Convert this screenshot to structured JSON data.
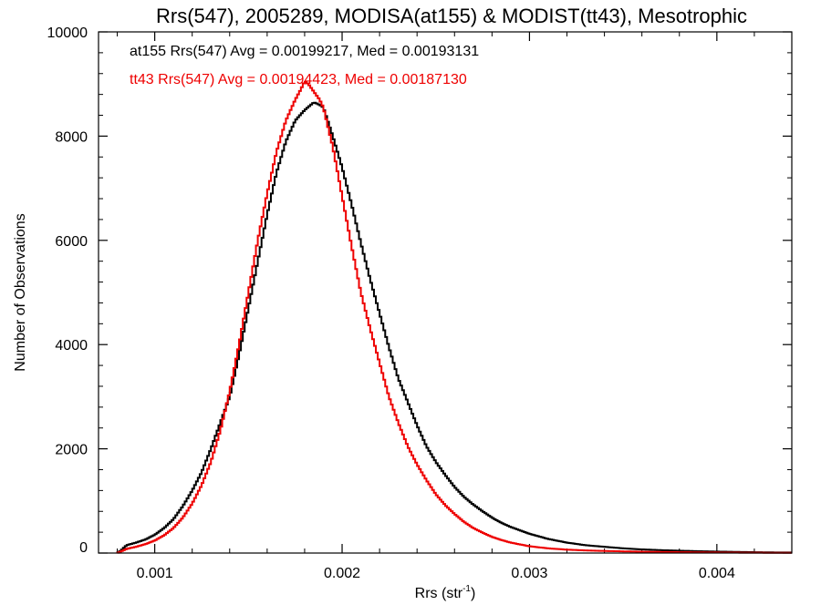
{
  "chart_data": {
    "type": "line",
    "title": "Rrs(547), 2005289, MODISA(at155) & MODIST(tt43), Mesotrophic",
    "xlabel_main": "Rrs (str",
    "xlabel_sup": "-1",
    "xlabel_tail": ")",
    "ylabel": "Number of Observations",
    "xlim": [
      0.0007,
      0.0044
    ],
    "ylim": [
      0,
      10000
    ],
    "xticks": [
      {
        "value": 0.001,
        "label": "0.001"
      },
      {
        "value": 0.002,
        "label": "0.002"
      },
      {
        "value": 0.003,
        "label": "0.003"
      },
      {
        "value": 0.004,
        "label": "0.004"
      }
    ],
    "yticks": [
      {
        "value": 0,
        "label": "0"
      },
      {
        "value": 2000,
        "label": "2000"
      },
      {
        "value": 4000,
        "label": "4000"
      },
      {
        "value": 6000,
        "label": "6000"
      },
      {
        "value": 8000,
        "label": "8000"
      },
      {
        "value": 10000,
        "label": "10000"
      }
    ],
    "grid": false,
    "series": [
      {
        "label": "at155 Rrs(547) Avg = 0.00199217, Med = 0.00193131",
        "color": "#000000",
        "x": [
          0.0008,
          0.00082,
          0.00085,
          0.0009,
          0.00095,
          0.001,
          0.00105,
          0.0011,
          0.00115,
          0.0012,
          0.00125,
          0.0013,
          0.00135,
          0.0014,
          0.00145,
          0.0015,
          0.00155,
          0.0016,
          0.00165,
          0.0017,
          0.00175,
          0.0018,
          0.00185,
          0.00188,
          0.0019,
          0.00195,
          0.002,
          0.00205,
          0.0021,
          0.00215,
          0.0022,
          0.00225,
          0.0023,
          0.00235,
          0.0024,
          0.00245,
          0.0025,
          0.00255,
          0.0026,
          0.00265,
          0.0027,
          0.00275,
          0.0028,
          0.00285,
          0.0029,
          0.003,
          0.0031,
          0.0032,
          0.0033,
          0.0034,
          0.0035,
          0.0036,
          0.0037,
          0.0038,
          0.0039,
          0.004,
          0.0041,
          0.0042,
          0.0043,
          0.0044
        ],
        "y": [
          0,
          50,
          150,
          200,
          260,
          350,
          480,
          650,
          900,
          1200,
          1550,
          2000,
          2500,
          3000,
          3800,
          4700,
          5600,
          6500,
          7300,
          7900,
          8300,
          8500,
          8650,
          8600,
          8550,
          8000,
          7400,
          6700,
          5950,
          5250,
          4600,
          3950,
          3350,
          2900,
          2450,
          2050,
          1750,
          1500,
          1270,
          1080,
          930,
          800,
          680,
          580,
          500,
          370,
          270,
          200,
          150,
          120,
          90,
          70,
          55,
          45,
          35,
          28,
          22,
          16,
          12,
          10
        ]
      },
      {
        "label": "tt43 Rrs(547) Avg = 0.00194423, Med = 0.00187130",
        "color": "#ee0000",
        "x": [
          0.0008,
          0.00082,
          0.00085,
          0.0009,
          0.00095,
          0.001,
          0.00105,
          0.0011,
          0.00115,
          0.0012,
          0.00125,
          0.0013,
          0.00135,
          0.0014,
          0.00145,
          0.0015,
          0.00155,
          0.0016,
          0.00165,
          0.0017,
          0.00175,
          0.00178,
          0.0018,
          0.00182,
          0.00185,
          0.00188,
          0.0019,
          0.00195,
          0.002,
          0.00205,
          0.0021,
          0.00215,
          0.0022,
          0.00225,
          0.0023,
          0.00235,
          0.0024,
          0.00245,
          0.0025,
          0.00255,
          0.0026,
          0.00265,
          0.0027,
          0.00275,
          0.0028,
          0.00285,
          0.0029,
          0.003,
          0.0031,
          0.0032,
          0.0033,
          0.0034,
          0.0035,
          0.0036,
          0.0037,
          0.0038,
          0.0039,
          0.004,
          0.0041,
          0.0042,
          0.0043,
          0.0044
        ],
        "y": [
          0,
          30,
          80,
          120,
          170,
          240,
          340,
          480,
          680,
          950,
          1300,
          1750,
          2350,
          3100,
          4000,
          5000,
          6000,
          6900,
          7700,
          8300,
          8700,
          8900,
          9050,
          9000,
          8850,
          8700,
          8550,
          7800,
          6850,
          5900,
          5000,
          4300,
          3650,
          3000,
          2500,
          2050,
          1700,
          1400,
          1130,
          920,
          750,
          600,
          480,
          390,
          310,
          250,
          200,
          130,
          90,
          65,
          50,
          40,
          32,
          25,
          20,
          16,
          13,
          10,
          8,
          6,
          5,
          4
        ]
      }
    ]
  }
}
